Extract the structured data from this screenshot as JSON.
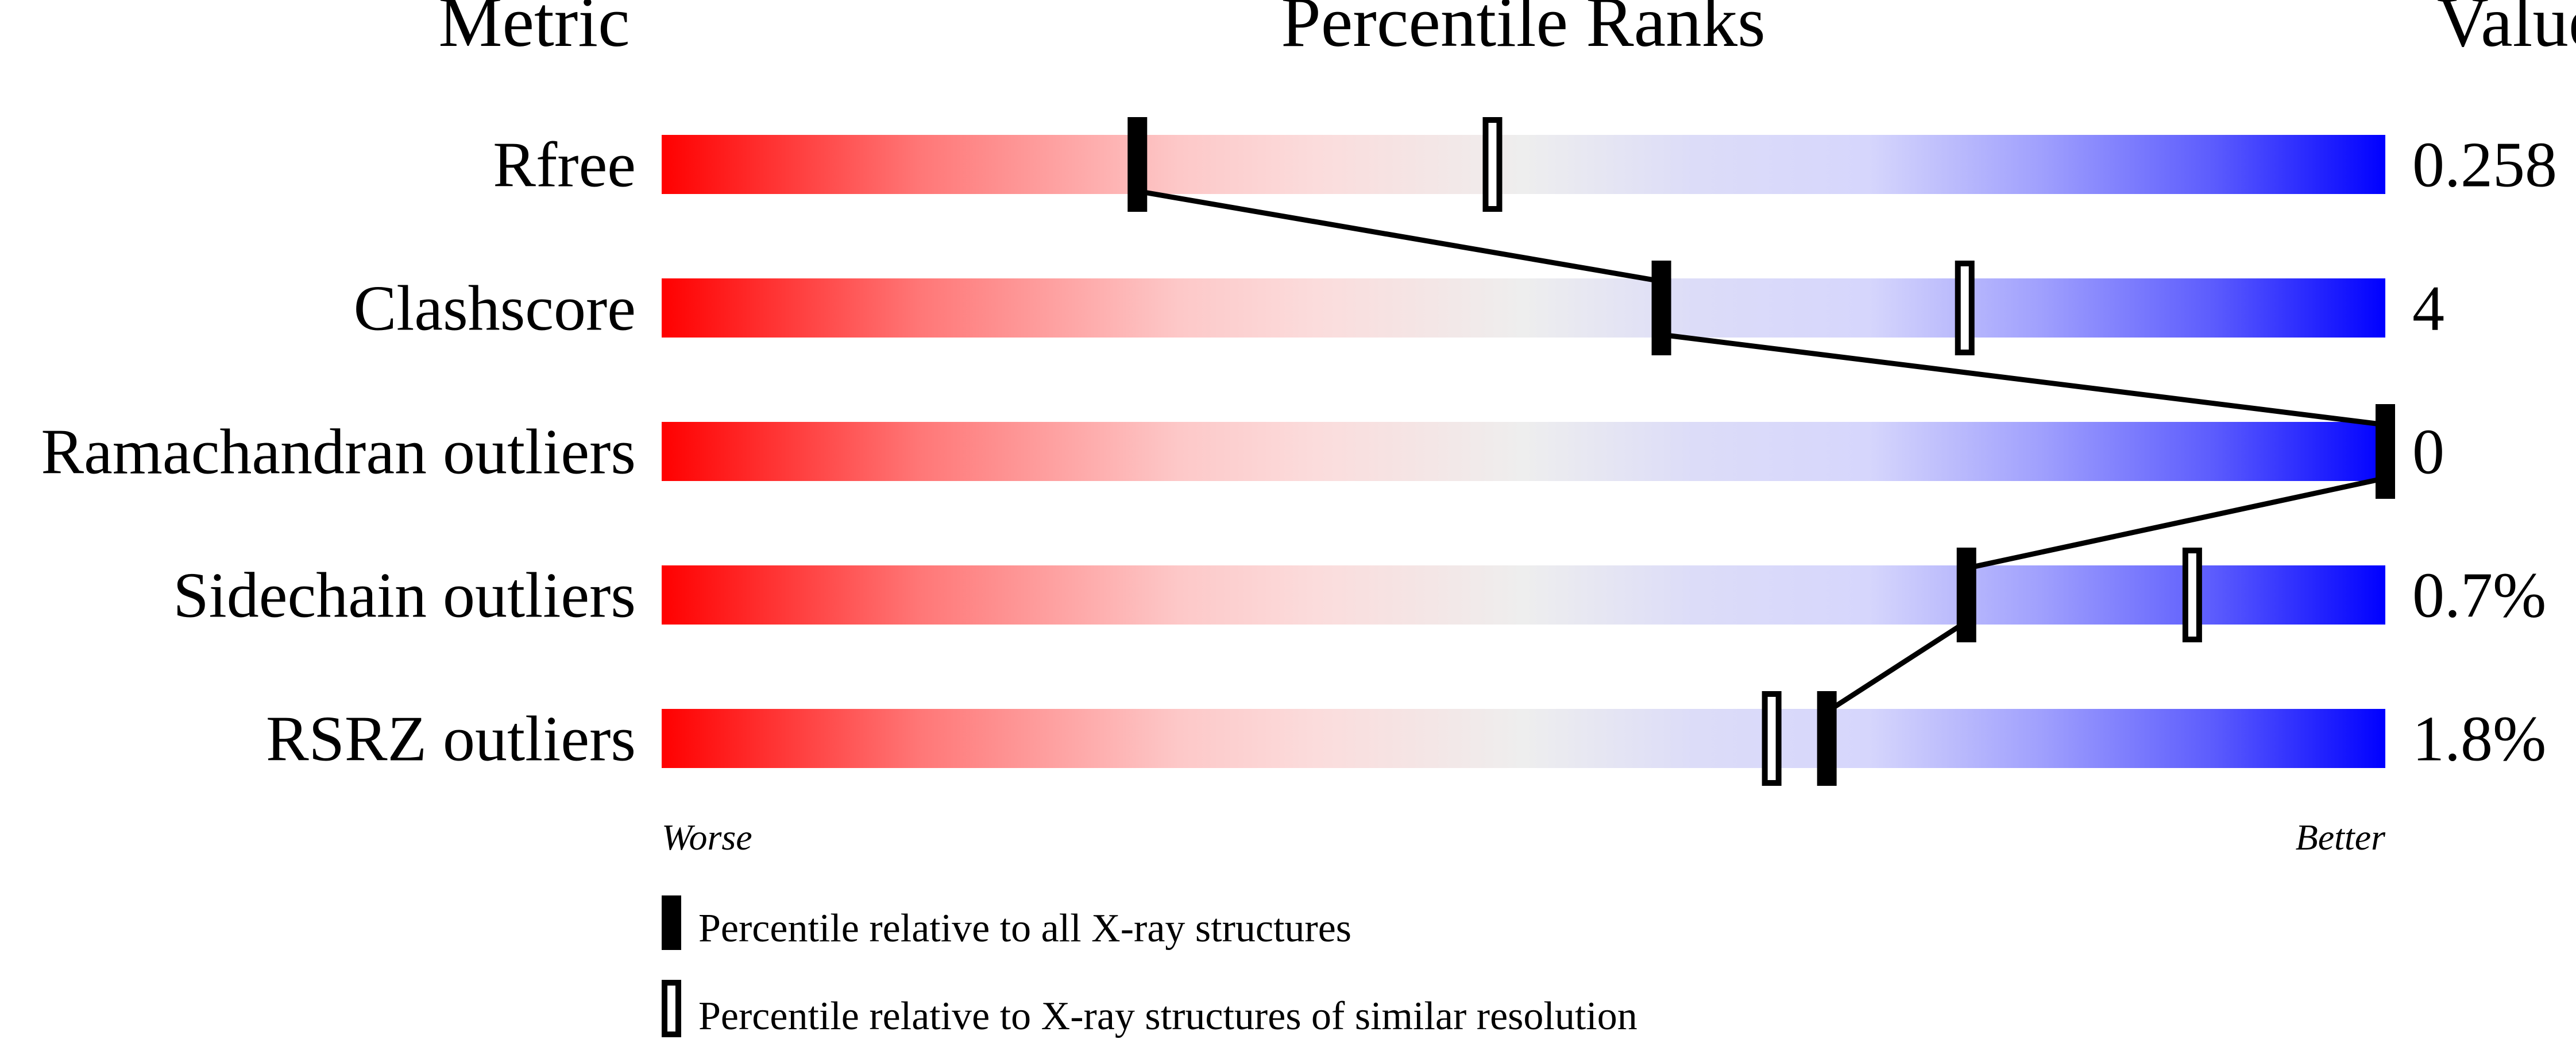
{
  "chart_data": {
    "type": "bar",
    "headers": {
      "metric": "Metric",
      "ranks": "Percentile Ranks",
      "value": "Value"
    },
    "metrics": [
      {
        "name": "Rfree",
        "value": "0.258",
        "percentile_all": 27.6,
        "percentile_similar": 48.2
      },
      {
        "name": "Clashscore",
        "value": "4",
        "percentile_all": 58,
        "percentile_similar": 75.6
      },
      {
        "name": "Ramachandran outliers",
        "value": "0",
        "percentile_all": 100,
        "percentile_similar": null
      },
      {
        "name": "Sidechain outliers",
        "value": "0.7%",
        "percentile_all": 75.7,
        "percentile_similar": 88.8
      },
      {
        "name": "RSRZ outliers",
        "value": "1.8%",
        "percentile_all": 67.6,
        "percentile_similar": 64.4
      }
    ],
    "xlim": [
      0,
      100
    ],
    "axis_left_label": "Worse",
    "axis_right_label": "Better",
    "legend": {
      "all": "Percentile relative to all X-ray structures",
      "similar": "Percentile relative to X-ray structures of similar resolution"
    },
    "colors": {
      "worse": "#ff0000",
      "middle": "#eeeeee",
      "better": "#0000ff",
      "marker": "#000000"
    }
  }
}
